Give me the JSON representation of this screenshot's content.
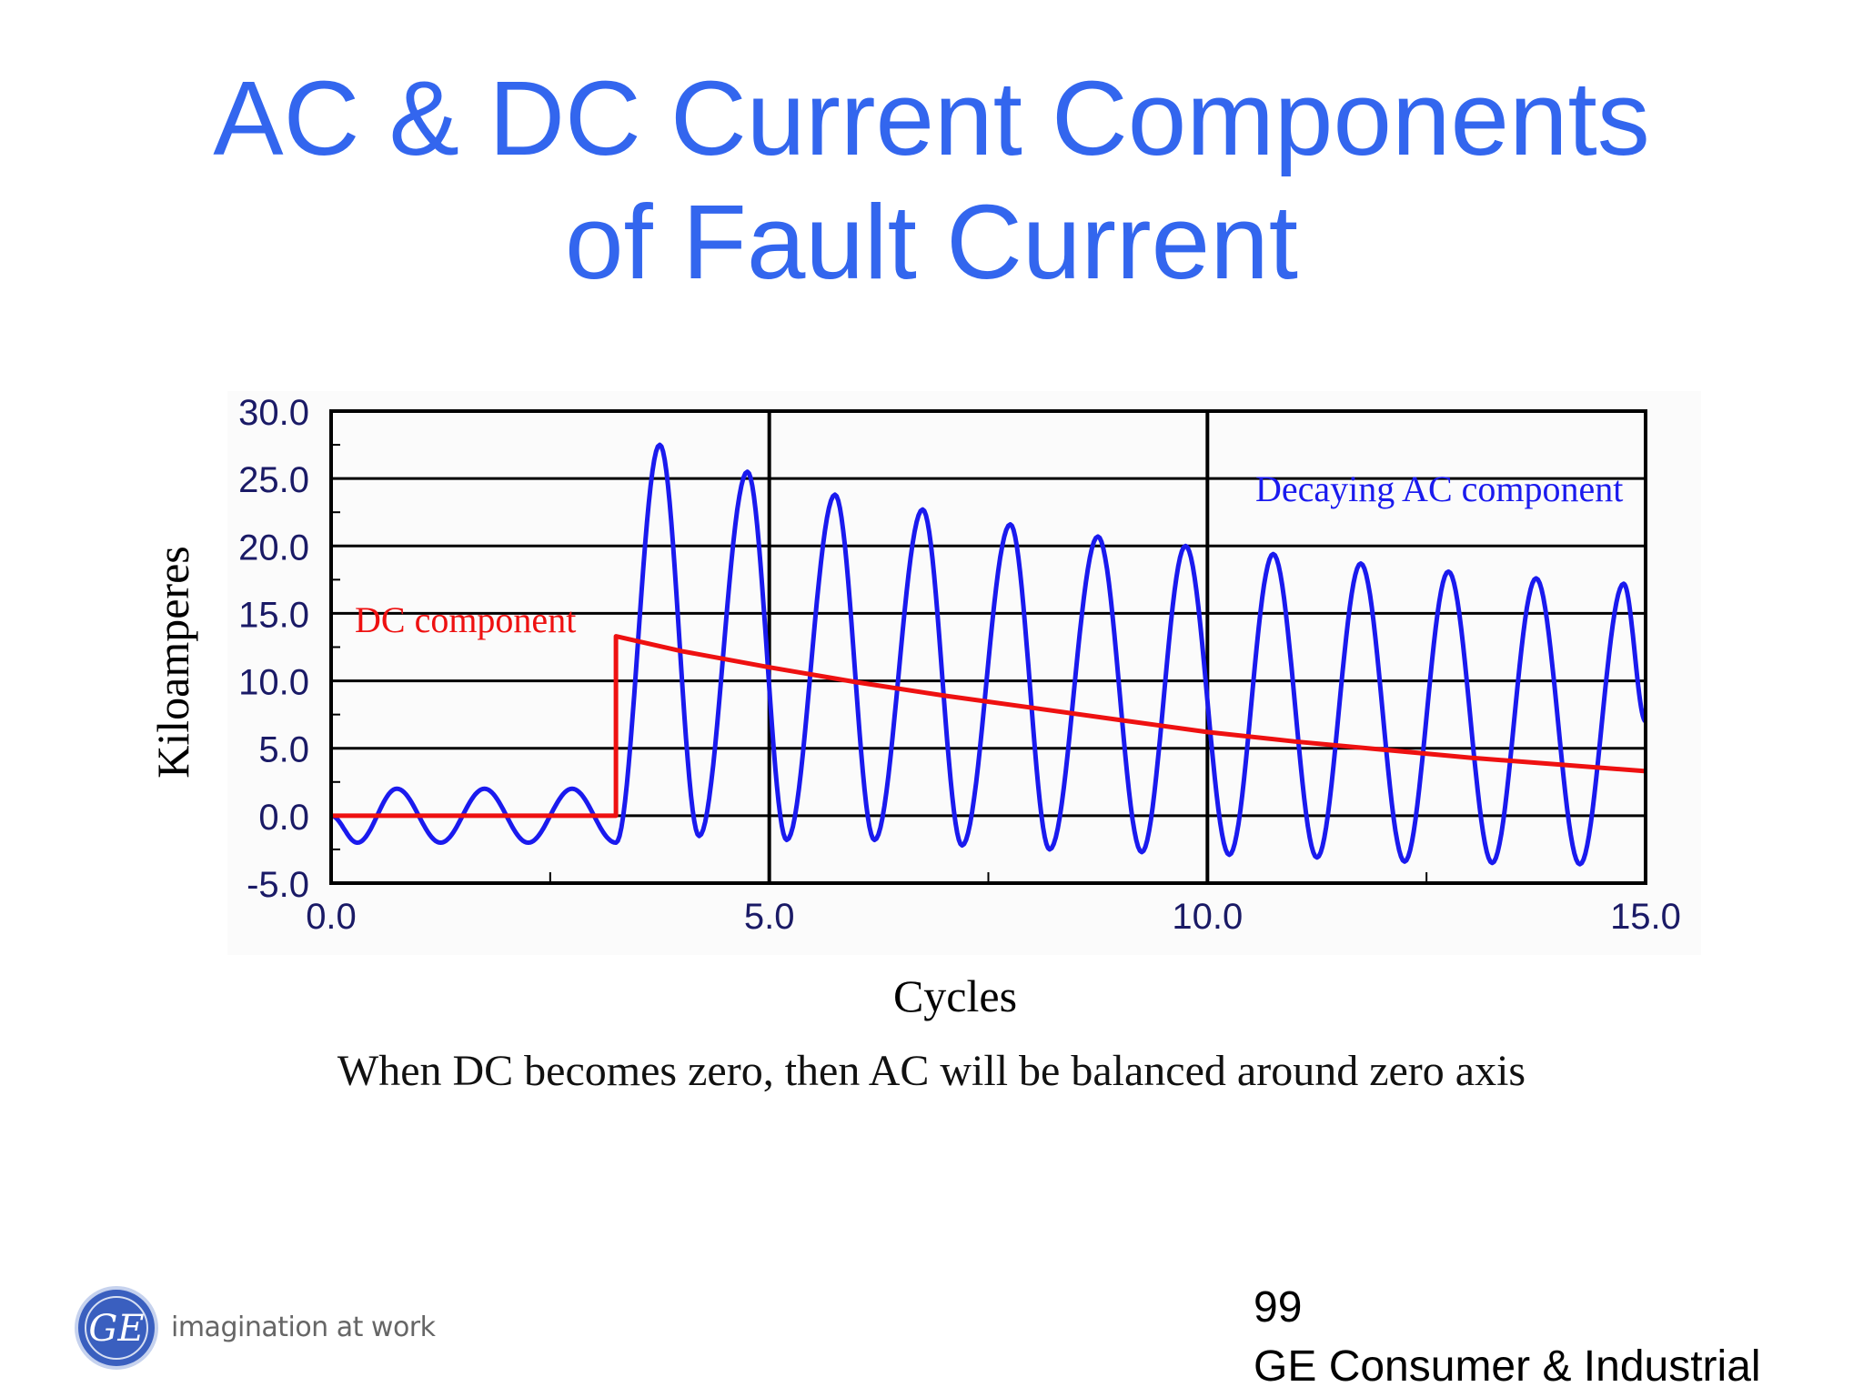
{
  "slide": {
    "title_line1": "AC & DC Current Components",
    "title_line2": "of Fault Current",
    "caption": "When DC becomes zero, then AC will be balanced around zero axis",
    "page_number": "99",
    "footer_text": "GE Consumer & Industrial",
    "tagline": "imagination at work",
    "logo_text": "GE",
    "title_color": "#3366ee"
  },
  "chart_data": {
    "type": "line",
    "xlabel": "Cycles",
    "ylabel": "Kiloamperes",
    "xlim": [
      0,
      15
    ],
    "ylim": [
      -5,
      30
    ],
    "x_ticks": [
      "0.0",
      "5.0",
      "10.0",
      "15.0"
    ],
    "y_ticks": [
      "30.0",
      "25.0",
      "20.0",
      "15.0",
      "10.0",
      "5.0",
      "0.0",
      "-5.0"
    ],
    "grid": true,
    "series": [
      {
        "name": "Decaying AC component",
        "color": "#1a1aee",
        "x": [
          0.0,
          0.3,
          0.75,
          1.25,
          1.75,
          2.25,
          2.75,
          3.25,
          3.75,
          4.2,
          4.75,
          5.2,
          5.75,
          6.2,
          6.75,
          7.2,
          7.75,
          8.2,
          8.75,
          9.25,
          9.75,
          10.25,
          10.75,
          11.25,
          11.75,
          12.25,
          12.75,
          13.25,
          13.75,
          14.25,
          14.75,
          15.0
        ],
        "y": [
          0.0,
          -2.0,
          2.0,
          -2.0,
          2.0,
          -2.0,
          2.0,
          -2.0,
          27.5,
          -1.5,
          25.5,
          -1.8,
          23.8,
          -1.8,
          22.7,
          -2.2,
          21.6,
          -2.5,
          20.7,
          -2.7,
          20.0,
          -2.9,
          19.4,
          -3.1,
          18.7,
          -3.4,
          18.1,
          -3.5,
          17.6,
          -3.6,
          17.2,
          7.0
        ]
      },
      {
        "name": "DC component",
        "color": "#ee1111",
        "x": [
          0.0,
          3.25,
          3.25,
          4.0,
          5.0,
          6.0,
          7.0,
          8.0,
          9.0,
          10.0,
          11.0,
          12.0,
          13.0,
          14.0,
          15.0
        ],
        "y": [
          0.0,
          0.0,
          13.3,
          12.2,
          11.0,
          9.9,
          8.9,
          8.0,
          7.1,
          6.2,
          5.5,
          4.9,
          4.3,
          3.8,
          3.3
        ]
      }
    ],
    "annotations": [
      {
        "text": "DC component",
        "color": "#ee1111"
      },
      {
        "text": "Decaying AC component",
        "color": "#1a1aee"
      }
    ]
  }
}
